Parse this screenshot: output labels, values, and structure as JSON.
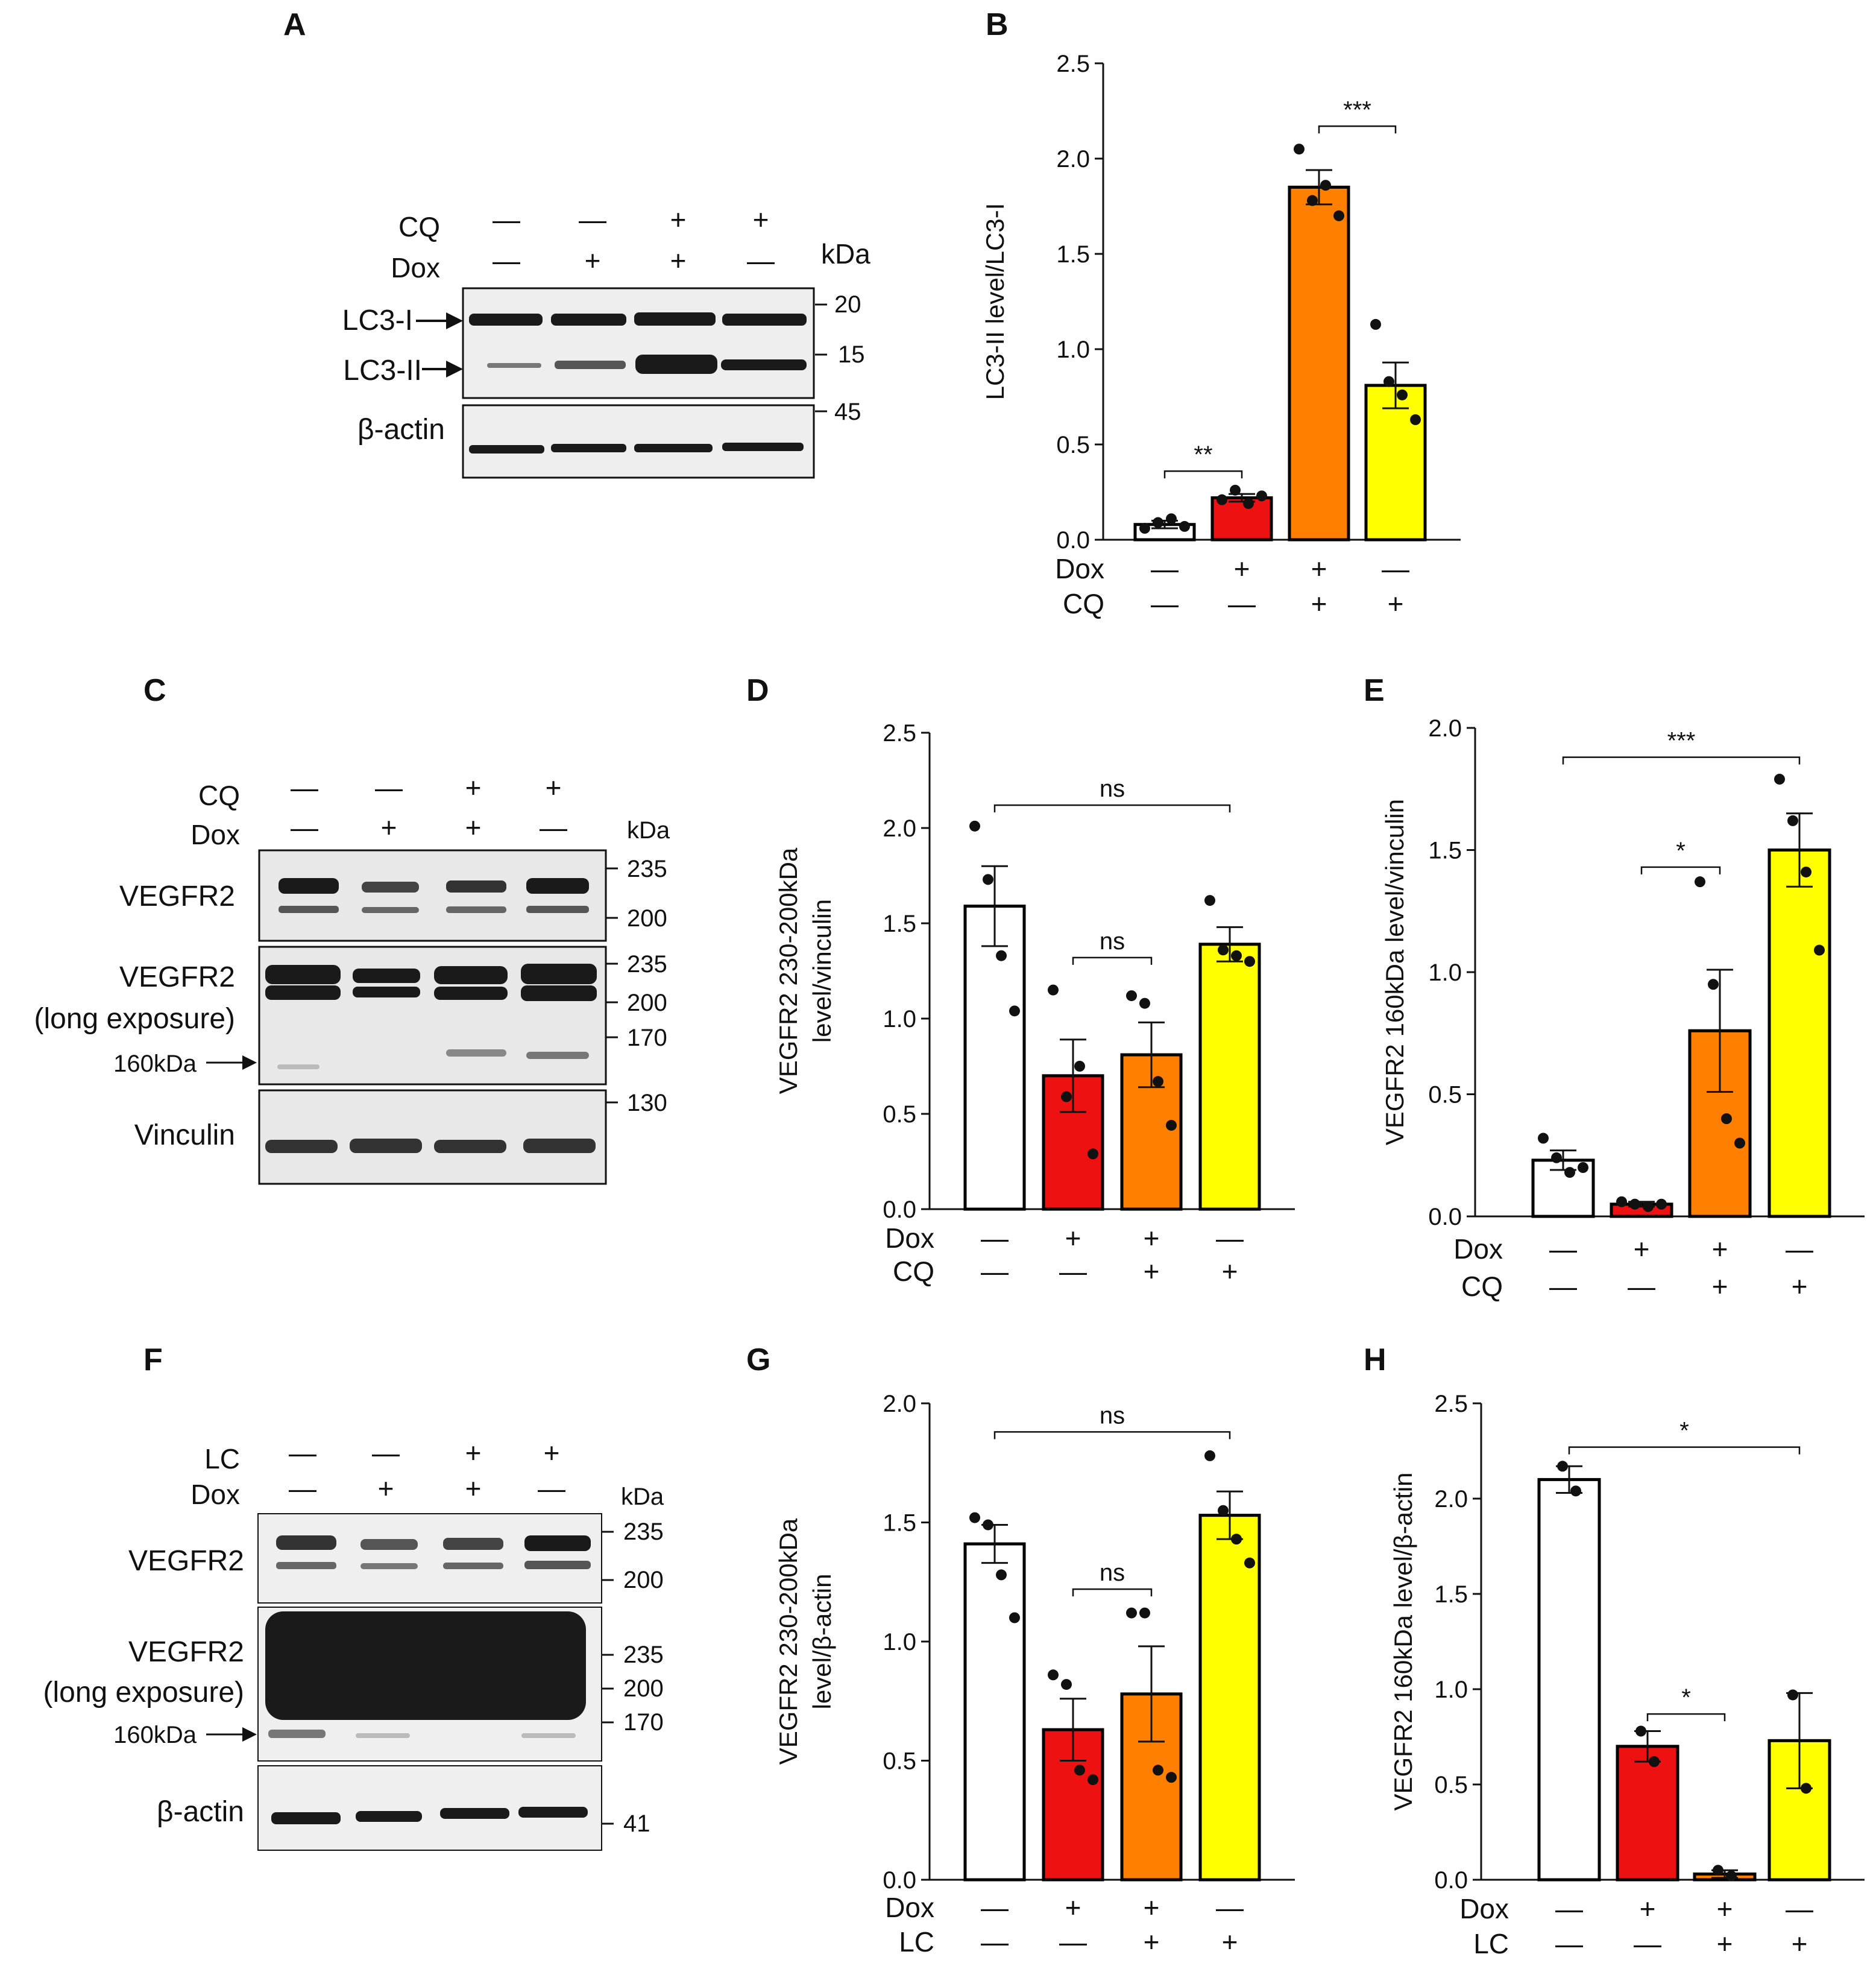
{
  "panels": {
    "A": {
      "label": "A",
      "conditions": [
        {
          "name": "CQ",
          "signs": [
            "—",
            "—",
            "+",
            "+"
          ]
        },
        {
          "name": "Dox",
          "signs": [
            "—",
            "+",
            "+",
            "—"
          ]
        }
      ],
      "kda_header": "kDa",
      "blots": [
        {
          "label": "LC3-I",
          "markers": [
            "20"
          ],
          "arrow": true
        },
        {
          "label": "LC3-II",
          "markers": [
            "15"
          ],
          "arrow": true
        },
        {
          "label": "β-actin",
          "markers": [
            "45"
          ],
          "arrow": false
        }
      ]
    },
    "C": {
      "label": "C",
      "conditions": [
        {
          "name": "CQ",
          "signs": [
            "—",
            "—",
            "+",
            "+"
          ]
        },
        {
          "name": "Dox",
          "signs": [
            "—",
            "+",
            "+",
            "—"
          ]
        }
      ],
      "kda_header": "kDa",
      "blots": [
        {
          "label": "VEGFR2",
          "markers": [
            "235",
            "200"
          ]
        },
        {
          "label": "VEGFR2",
          "label2": "(long exposure)",
          "markers": [
            "235",
            "200",
            "170"
          ],
          "extra": "160kDa"
        },
        {
          "label": "Vinculin",
          "markers": [
            "130"
          ]
        }
      ]
    },
    "F": {
      "label": "F",
      "conditions": [
        {
          "name": "LC",
          "signs": [
            "—",
            "—",
            "+",
            "+"
          ]
        },
        {
          "name": "Dox",
          "signs": [
            "—",
            "+",
            "+",
            "—"
          ]
        }
      ],
      "kda_header": "kDa",
      "blots": [
        {
          "label": "VEGFR2",
          "markers": [
            "235",
            "200"
          ]
        },
        {
          "label": "VEGFR2",
          "label2": "(long exposure)",
          "markers": [
            "235",
            "200",
            "170"
          ],
          "extra": "160kDa"
        },
        {
          "label": "β-actin",
          "markers": [
            "41"
          ]
        }
      ]
    }
  },
  "colors": {
    "ctrl": "#ffffff",
    "dox": "#ee1111",
    "dox_cq": "#ff7f00",
    "cq": "#ffff00",
    "edge": "#000000"
  },
  "chart_data": [
    {
      "id": "B",
      "panel_label": "B",
      "type": "bar",
      "ylabel": "LC3-II level/LC3-I",
      "ylim": [
        0,
        2.5
      ],
      "yticks": [
        "0.0",
        "0.5",
        "1.0",
        "1.5",
        "2.0",
        "2.5"
      ],
      "categories": [
        "1",
        "2",
        "3",
        "4"
      ],
      "values": [
        0.08,
        0.22,
        1.85,
        0.81
      ],
      "errors": [
        0.02,
        0.02,
        0.09,
        0.12
      ],
      "points": [
        [
          0.06,
          0.09,
          0.11,
          0.07
        ],
        [
          0.21,
          0.26,
          0.19,
          0.23
        ],
        [
          2.05,
          1.78,
          1.86,
          1.7
        ],
        [
          1.13,
          0.83,
          0.76,
          0.63
        ]
      ],
      "conditions": [
        {
          "name": "Dox",
          "signs": [
            "—",
            "+",
            "+",
            "—"
          ]
        },
        {
          "name": "CQ",
          "signs": [
            "—",
            "—",
            "+",
            "+"
          ]
        }
      ],
      "significance": [
        {
          "from": 0,
          "to": 1,
          "label": "**",
          "y": 0.36
        },
        {
          "from": 2,
          "to": 3,
          "label": "***",
          "y": 2.17
        }
      ]
    },
    {
      "id": "D",
      "panel_label": "D",
      "type": "bar",
      "ylabel": "VEGFR2 230-200kDa",
      "ylabel2": "level/vinculin",
      "ylim": [
        0,
        2.5
      ],
      "yticks": [
        "0.0",
        "0.5",
        "1.0",
        "1.5",
        "2.0",
        "2.5"
      ],
      "categories": [
        "1",
        "2",
        "3",
        "4"
      ],
      "values": [
        1.59,
        0.7,
        0.81,
        1.39
      ],
      "errors": [
        0.21,
        0.19,
        0.17,
        0.09
      ],
      "points": [
        [
          2.01,
          1.73,
          1.33,
          1.04
        ],
        [
          1.15,
          0.59,
          0.75,
          0.29
        ],
        [
          1.12,
          1.08,
          0.67,
          0.44
        ],
        [
          1.62,
          1.36,
          1.33,
          1.3
        ]
      ],
      "conditions": [
        {
          "name": "Dox",
          "signs": [
            "—",
            "+",
            "+",
            "—"
          ]
        },
        {
          "name": "CQ",
          "signs": [
            "—",
            "—",
            "+",
            "+"
          ]
        }
      ],
      "significance": [
        {
          "from": 0,
          "to": 3,
          "label": "ns",
          "y": 2.12
        },
        {
          "from": 1,
          "to": 2,
          "label": "ns",
          "y": 1.32
        }
      ]
    },
    {
      "id": "E",
      "panel_label": "E",
      "type": "bar",
      "ylabel": "VEGFR2 160kDa level/vinculin",
      "ylim": [
        0,
        2.0
      ],
      "yticks": [
        "0.0",
        "0.5",
        "1.0",
        "1.5",
        "2.0"
      ],
      "categories": [
        "1",
        "2",
        "3",
        "4"
      ],
      "values": [
        0.23,
        0.05,
        0.76,
        1.5
      ],
      "errors": [
        0.04,
        0.01,
        0.25,
        0.15
      ],
      "points": [
        [
          0.32,
          0.24,
          0.18,
          0.2
        ],
        [
          0.06,
          0.05,
          0.04,
          0.05
        ],
        [
          1.37,
          0.95,
          0.4,
          0.3
        ],
        [
          1.79,
          1.62,
          1.41,
          1.09
        ]
      ],
      "conditions": [
        {
          "name": "Dox",
          "signs": [
            "—",
            "+",
            "+",
            "—"
          ]
        },
        {
          "name": "CQ",
          "signs": [
            "—",
            "—",
            "+",
            "+"
          ]
        }
      ],
      "significance": [
        {
          "from": 0,
          "to": 3,
          "label": "***",
          "y": 1.88
        },
        {
          "from": 1,
          "to": 2,
          "label": "*",
          "y": 1.43
        }
      ]
    },
    {
      "id": "G",
      "panel_label": "G",
      "type": "bar",
      "ylabel": "VEGFR2 230-200kDa",
      "ylabel2": "level/β-actin",
      "ylim": [
        0,
        2.0
      ],
      "yticks": [
        "0.0",
        "0.5",
        "1.0",
        "1.5",
        "2.0"
      ],
      "categories": [
        "1",
        "2",
        "3",
        "4"
      ],
      "values": [
        1.41,
        0.63,
        0.78,
        1.53
      ],
      "errors": [
        0.08,
        0.13,
        0.2,
        0.1
      ],
      "points": [
        [
          1.52,
          1.49,
          1.28,
          1.1
        ],
        [
          0.86,
          0.82,
          0.46,
          0.42
        ],
        [
          1.12,
          1.12,
          0.46,
          0.43
        ],
        [
          1.78,
          1.55,
          1.43,
          1.33
        ]
      ],
      "conditions": [
        {
          "name": "Dox",
          "signs": [
            "—",
            "+",
            "+",
            "—"
          ]
        },
        {
          "name": "LC",
          "signs": [
            "—",
            "—",
            "+",
            "+"
          ]
        }
      ],
      "significance": [
        {
          "from": 0,
          "to": 3,
          "label": "ns",
          "y": 1.88
        },
        {
          "from": 1,
          "to": 2,
          "label": "ns",
          "y": 1.22
        }
      ]
    },
    {
      "id": "H",
      "panel_label": "H",
      "type": "bar",
      "ylabel": "VEGFR2 160kDa level/β-actin",
      "ylim": [
        0,
        2.5
      ],
      "yticks": [
        "0.0",
        "0.5",
        "1.0",
        "1.5",
        "2.0",
        "2.5"
      ],
      "categories": [
        "1",
        "2",
        "3",
        "4"
      ],
      "values": [
        2.1,
        0.7,
        0.03,
        0.73
      ],
      "errors": [
        0.07,
        0.08,
        0.02,
        0.25
      ],
      "points": [
        [
          2.17,
          2.04
        ],
        [
          0.78,
          0.62
        ],
        [
          0.05,
          0.02
        ],
        [
          0.97,
          0.48
        ]
      ],
      "conditions": [
        {
          "name": "Dox",
          "signs": [
            "—",
            "+",
            "+",
            "—"
          ]
        },
        {
          "name": "LC",
          "signs": [
            "—",
            "—",
            "+",
            "+"
          ]
        }
      ],
      "significance": [
        {
          "from": 0,
          "to": 3,
          "label": "*",
          "y": 2.27
        },
        {
          "from": 1,
          "to": 2,
          "label": "*",
          "y": 0.87
        }
      ]
    }
  ]
}
